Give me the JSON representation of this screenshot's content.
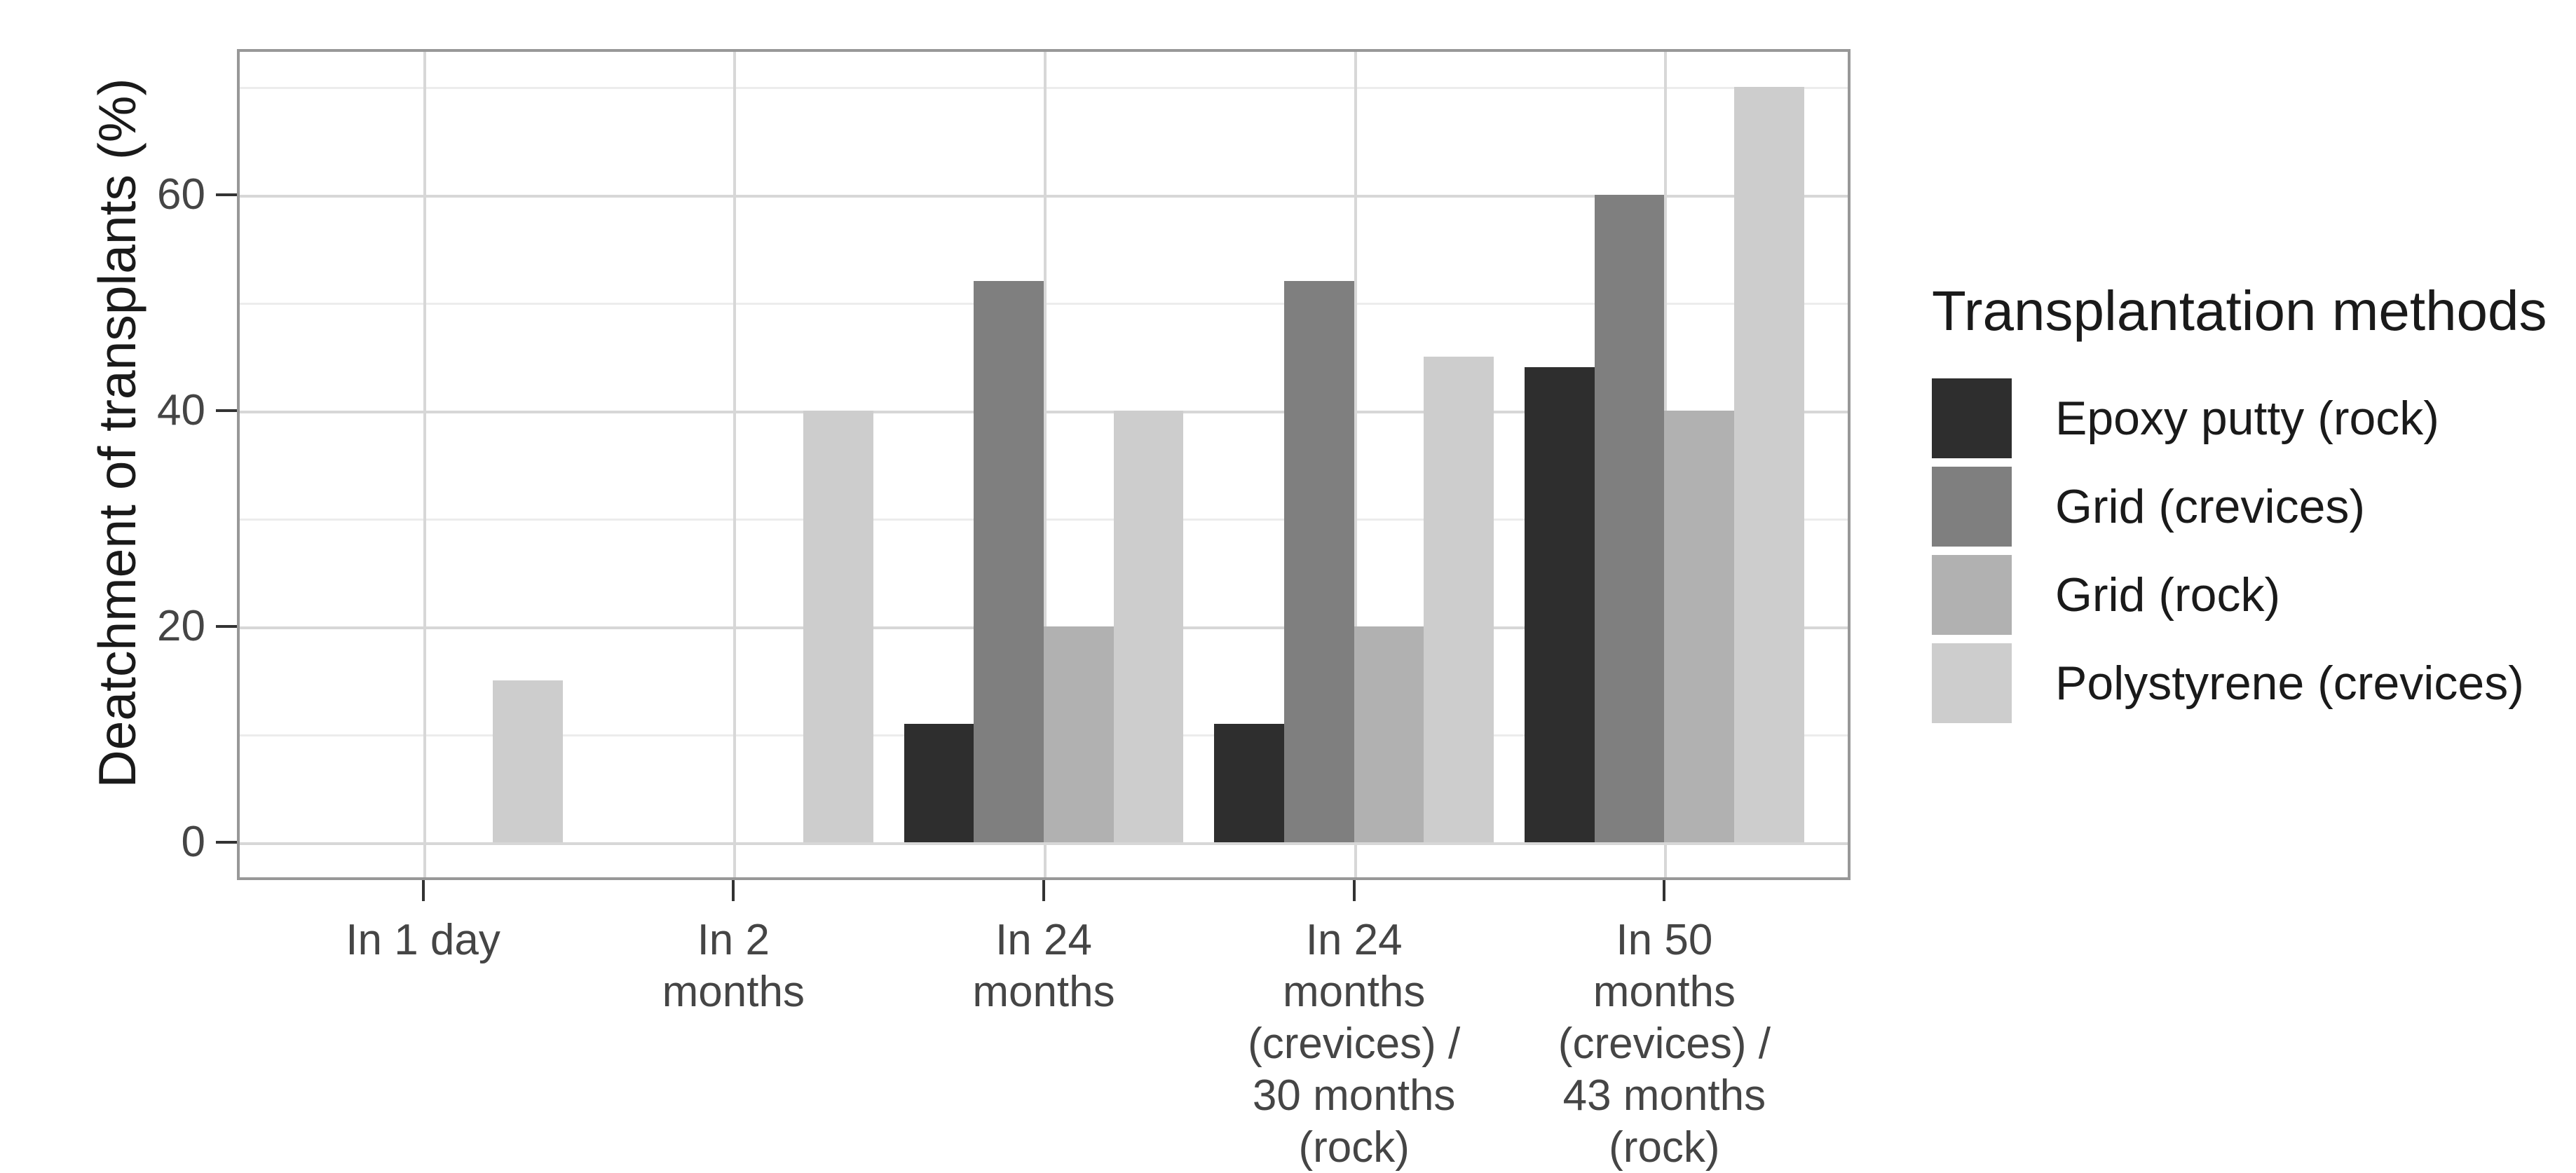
{
  "chart_data": {
    "type": "bar",
    "title": "",
    "xlabel": "",
    "ylabel": "Deatchment of transplants (%)",
    "ylim": [
      0,
      70
    ],
    "yticks": [
      0,
      20,
      40,
      60
    ],
    "minor_gridlines": [
      10,
      30,
      50,
      70
    ],
    "grid": "on",
    "legend_position": "right",
    "legend_title": "Transplantation methods",
    "categories": [
      "In 1 day",
      "In 2 months",
      "In 24 months",
      "In 24 months (crevices) / 30 months (rock)",
      "In 50 months (crevices) / 43 months (rock)"
    ],
    "category_label_lines": [
      [
        "In 1 day"
      ],
      [
        "In 2",
        "months"
      ],
      [
        "In 24",
        "months"
      ],
      [
        "In 24",
        "months",
        "(crevices) /",
        "30 months",
        "(rock)"
      ],
      [
        "In 50",
        "months",
        "(crevices) /",
        "43 months",
        "(rock)"
      ]
    ],
    "series": [
      {
        "name": "Epoxy putty (rock)",
        "color": "#2e2e2e",
        "values": [
          0,
          0,
          11,
          11,
          44
        ]
      },
      {
        "name": "Grid (crevices)",
        "color": "#7f7f7f",
        "values": [
          0,
          0,
          52,
          52,
          60
        ]
      },
      {
        "name": "Grid (rock)",
        "color": "#b1b1b1",
        "values": [
          0,
          0,
          20,
          20,
          40
        ]
      },
      {
        "name": "Polystyrene (crevices)",
        "color": "#cdcdcd",
        "values": [
          15,
          40,
          40,
          45,
          70
        ]
      }
    ]
  },
  "colors": {
    "background": "#ffffff",
    "panel_border": "#989898",
    "gridline_major": "#d7d7d7",
    "gridline_minor": "#ececec",
    "tick_mark": "#333333",
    "axis_text": "#454545",
    "title_text": "#1a1a1a"
  }
}
